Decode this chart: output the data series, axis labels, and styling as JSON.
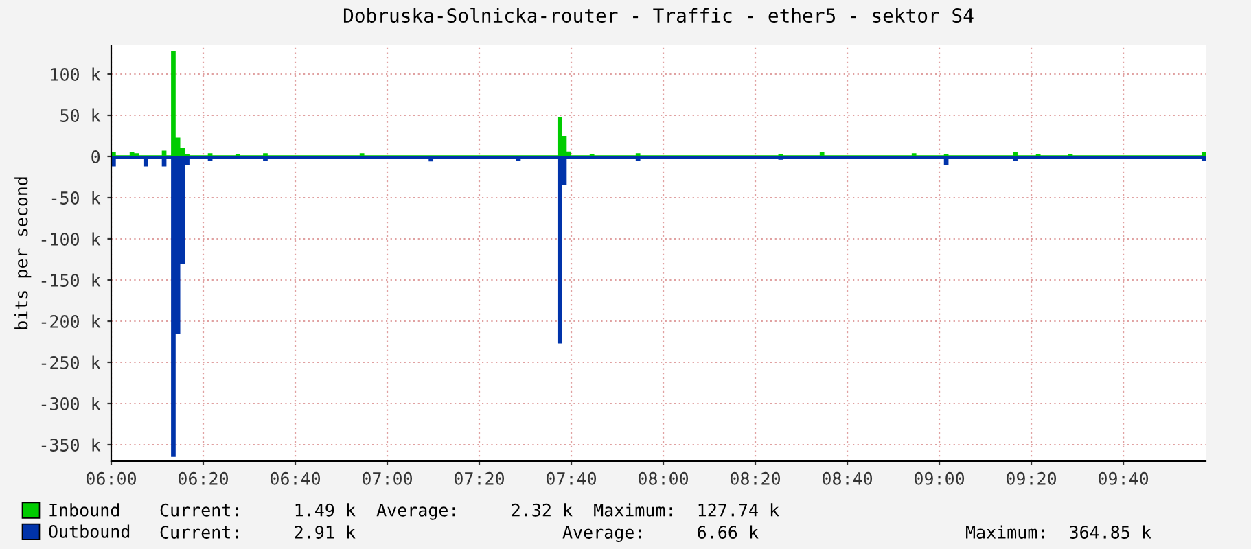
{
  "chart_data": {
    "type": "area",
    "title": "Dobruska-Solnicka-router - Traffic - ether5 - sektor S4",
    "ylabel": "bits per second",
    "xlim": [
      6,
      9.965
    ],
    "ylim": [
      -370000,
      135000
    ],
    "xticks": [
      {
        "value": 6,
        "label": "06:00"
      },
      {
        "value": 6.3333,
        "label": "06:20"
      },
      {
        "value": 6.6667,
        "label": "06:40"
      },
      {
        "value": 7,
        "label": "07:00"
      },
      {
        "value": 7.3333,
        "label": "07:20"
      },
      {
        "value": 7.6667,
        "label": "07:40"
      },
      {
        "value": 8,
        "label": "08:00"
      },
      {
        "value": 8.3333,
        "label": "08:20"
      },
      {
        "value": 8.6667,
        "label": "08:40"
      },
      {
        "value": 9,
        "label": "09:00"
      },
      {
        "value": 9.3333,
        "label": "09:20"
      },
      {
        "value": 9.6667,
        "label": "09:40"
      }
    ],
    "yticks": [
      {
        "value": -350000,
        "label": "-350 k"
      },
      {
        "value": -300000,
        "label": "-300 k"
      },
      {
        "value": -250000,
        "label": "-250 k"
      },
      {
        "value": -200000,
        "label": "-200 k"
      },
      {
        "value": -150000,
        "label": "-150 k"
      },
      {
        "value": -100000,
        "label": "-100 k"
      },
      {
        "value": -50000,
        "label": "-50 k"
      },
      {
        "value": 0,
        "label": "0"
      },
      {
        "value": 50000,
        "label": "50 k"
      },
      {
        "value": 100000,
        "label": "100 k"
      }
    ],
    "grid": true,
    "legend": "bottom",
    "series": [
      {
        "name": "Inbound",
        "color": "#00cc00",
        "x": [
          6,
          6.0167,
          6.0667,
          6.0833,
          6.1,
          6.1833,
          6.2,
          6.2167,
          6.2333,
          6.25,
          6.2667,
          6.2833,
          6.35,
          6.3667,
          6.45,
          6.4667,
          6.55,
          6.5667,
          6.9,
          6.9167,
          7.15,
          7.3667,
          7.6167,
          7.6333,
          7.65,
          7.6667,
          7.7333,
          7.75,
          7.9,
          7.9167,
          8.2667,
          8.4167,
          8.4333,
          8.5667,
          8.5833,
          8.9,
          8.9167,
          9.0167,
          9.0333,
          9.2667,
          9.2833,
          9.35,
          9.3667,
          9.4667,
          9.4833,
          9.95,
          9.965
        ],
        "values": [
          5000,
          1500,
          5000,
          4000,
          1500,
          7000,
          1500,
          127740,
          23000,
          10000,
          3000,
          1500,
          4000,
          1500,
          3000,
          1500,
          4000,
          1500,
          4000,
          1500,
          1500,
          1500,
          48000,
          25000,
          6000,
          1500,
          3000,
          1500,
          4000,
          1500,
          1500,
          3000,
          1500,
          5000,
          1500,
          4000,
          1500,
          3000,
          1500,
          5000,
          1500,
          3000,
          1500,
          3000,
          1500,
          5000,
          5000
        ]
      },
      {
        "name": "Outbound",
        "color": "#0033aa",
        "x": [
          6,
          6.0167,
          6.1167,
          6.1333,
          6.1833,
          6.2,
          6.2167,
          6.2333,
          6.25,
          6.2667,
          6.2833,
          6.35,
          6.3667,
          6.45,
          6.4667,
          6.55,
          6.5667,
          7.15,
          7.1667,
          7.4667,
          7.4833,
          7.6167,
          7.6333,
          7.65,
          7.9,
          7.9167,
          8.2667,
          8.4167,
          8.4333,
          9.0167,
          9.0333,
          9.2667,
          9.2833,
          9.95,
          9.965
        ],
        "values": [
          -12000,
          -2500,
          -12000,
          -2500,
          -12000,
          -2500,
          -364850,
          -215000,
          -130000,
          -10000,
          -2500,
          -5000,
          -2500,
          -3000,
          -2500,
          -5000,
          -2500,
          -6000,
          -2500,
          -5000,
          -2500,
          -227000,
          -35000,
          -2500,
          -5000,
          -2500,
          -2500,
          -4000,
          -2500,
          -10000,
          -2500,
          -5000,
          -2500,
          -5000,
          -5000
        ]
      }
    ],
    "annotations": [
      "Current:     1.49 k  Average:     2.32 k  Maximum:  127.74 k",
      "Current:     2.91 k                    Average:     6.66 k                    Maximum:  364.85 k"
    ]
  }
}
